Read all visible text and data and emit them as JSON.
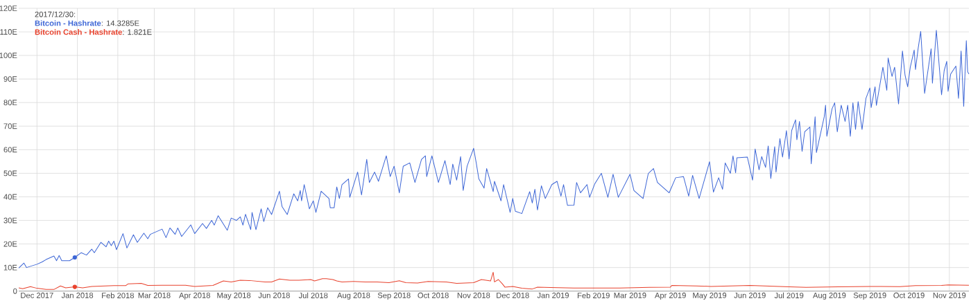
{
  "chart_data": {
    "type": "line",
    "xlim": [
      "2017-11-17",
      "2019-11-16"
    ],
    "ylim": [
      0,
      120
    ],
    "xticks": [
      {
        "value": "2017-12-01",
        "label": "Dec 2017"
      },
      {
        "value": "2018-01-01",
        "label": "Jan 2018"
      },
      {
        "value": "2018-02-01",
        "label": "Feb 2018"
      },
      {
        "value": "2018-03-01",
        "label": "Mar 2018"
      },
      {
        "value": "2018-04-01",
        "label": "Apr 2018"
      },
      {
        "value": "2018-05-01",
        "label": "May 2018"
      },
      {
        "value": "2018-06-01",
        "label": "Jun 2018"
      },
      {
        "value": "2018-07-01",
        "label": "Jul 2018"
      },
      {
        "value": "2018-08-01",
        "label": "Aug 2018"
      },
      {
        "value": "2018-09-01",
        "label": "Sep 2018"
      },
      {
        "value": "2018-10-01",
        "label": "Oct 2018"
      },
      {
        "value": "2018-11-01",
        "label": "Nov 2018"
      },
      {
        "value": "2018-12-01",
        "label": "Dec 2018"
      },
      {
        "value": "2019-01-01",
        "label": "Jan 2019"
      },
      {
        "value": "2019-02-01",
        "label": "Feb 2019"
      },
      {
        "value": "2019-03-01",
        "label": "Mar 2019"
      },
      {
        "value": "2019-04-01",
        "label": "Apr 2019"
      },
      {
        "value": "2019-05-01",
        "label": "May 2019"
      },
      {
        "value": "2019-06-01",
        "label": "Jun 2019"
      },
      {
        "value": "2019-07-01",
        "label": "Jul 2019"
      },
      {
        "value": "2019-08-01",
        "label": "Aug 2019"
      },
      {
        "value": "2019-09-01",
        "label": "Sep 2019"
      },
      {
        "value": "2019-10-01",
        "label": "Oct 2019"
      },
      {
        "value": "2019-11-01",
        "label": "Nov 2019"
      }
    ],
    "yticks": [
      0,
      {
        "value": 10,
        "label": "10E"
      },
      {
        "value": 20,
        "label": "20E"
      },
      {
        "value": 30,
        "label": "30E"
      },
      {
        "value": 40,
        "label": "40E"
      },
      {
        "value": 50,
        "label": "50E"
      },
      {
        "value": 60,
        "label": "60E"
      },
      {
        "value": 70,
        "label": "70E"
      },
      {
        "value": 80,
        "label": "80E"
      },
      {
        "value": 90,
        "label": "90E"
      },
      {
        "value": 100,
        "label": "100E"
      },
      {
        "value": 110,
        "label": "110E"
      },
      {
        "value": 120,
        "label": "120E"
      }
    ],
    "grid": true,
    "legend": "top left",
    "marker": "none",
    "line_style": "solid",
    "annotations": [
      "2017/12/30:",
      ": 14.3285E",
      ": 1.821E"
    ],
    "series": [
      {
        "name": "Bitcoin - Hashrate",
        "color": "#3d66d6",
        "x": [
          "2017-11-17",
          "2017-11-21",
          "2017-11-23",
          "2017-12-01",
          "2017-12-05",
          "2017-12-08",
          "2017-12-14",
          "2017-12-16",
          "2017-12-18",
          "2017-12-20",
          "2017-12-26",
          "2017-12-30",
          "2018-01-04",
          "2018-01-08",
          "2018-01-12",
          "2018-01-14",
          "2018-01-19",
          "2018-01-23",
          "2018-01-25",
          "2018-01-27",
          "2018-01-29",
          "2018-01-31",
          "2018-02-05",
          "2018-02-08",
          "2018-02-13",
          "2018-02-16",
          "2018-02-21",
          "2018-02-24",
          "2018-02-26",
          "2018-03-07",
          "2018-03-10",
          "2018-03-13",
          "2018-03-17",
          "2018-03-19",
          "2018-03-22",
          "2018-03-29",
          "2018-04-01",
          "2018-04-07",
          "2018-04-10",
          "2018-04-14",
          "2018-04-16",
          "2018-04-19",
          "2018-04-26",
          "2018-04-29",
          "2018-05-03",
          "2018-05-06",
          "2018-05-08",
          "2018-05-10",
          "2018-05-14",
          "2018-05-15",
          "2018-05-18",
          "2018-05-22",
          "2018-05-24",
          "2018-05-27",
          "2018-05-30",
          "2018-06-05",
          "2018-06-07",
          "2018-06-11",
          "2018-06-16",
          "2018-06-19",
          "2018-06-21",
          "2018-06-22",
          "2018-06-24",
          "2018-06-28",
          "2018-07-01",
          "2018-07-03",
          "2018-07-07",
          "2018-07-13",
          "2018-07-14",
          "2018-07-17",
          "2018-07-19",
          "2018-07-21",
          "2018-07-23",
          "2018-07-28",
          "2018-07-29",
          "2018-08-04",
          "2018-08-07",
          "2018-08-11",
          "2018-08-13",
          "2018-08-17",
          "2018-08-20",
          "2018-08-26",
          "2018-08-29",
          "2018-09-01",
          "2018-09-05",
          "2018-09-08",
          "2018-09-13",
          "2018-09-17",
          "2018-09-22",
          "2018-09-25",
          "2018-09-26",
          "2018-09-30",
          "2018-10-05",
          "2018-10-10",
          "2018-10-14",
          "2018-10-16",
          "2018-10-19",
          "2018-10-22",
          "2018-10-24",
          "2018-10-27",
          "2018-11-01",
          "2018-11-03",
          "2018-11-05",
          "2018-11-09",
          "2018-11-11",
          "2018-11-16",
          "2018-11-17",
          "2018-11-22",
          "2018-11-24",
          "2018-11-29",
          "2018-12-01",
          "2018-12-03",
          "2018-12-08",
          "2018-12-14",
          "2018-12-16",
          "2018-12-18",
          "2018-12-20",
          "2018-12-23",
          "2018-12-26",
          "2018-12-31",
          "2019-01-04",
          "2019-01-07",
          "2019-01-09",
          "2019-01-12",
          "2019-01-17",
          "2019-01-19",
          "2019-01-22",
          "2019-01-27",
          "2019-01-29",
          "2019-02-02",
          "2019-02-07",
          "2019-02-12",
          "2019-02-16",
          "2019-02-20",
          "2019-03-01",
          "2019-03-04",
          "2019-03-11",
          "2019-03-15",
          "2019-03-19",
          "2019-03-22",
          "2019-03-31",
          "2019-04-05",
          "2019-04-11",
          "2019-04-15",
          "2019-04-18",
          "2019-04-23",
          "2019-05-01",
          "2019-05-04",
          "2019-05-08",
          "2019-05-11",
          "2019-05-13",
          "2019-05-17",
          "2019-05-19",
          "2019-05-21",
          "2019-05-22",
          "2019-05-30",
          "2019-06-03",
          "2019-06-05",
          "2019-06-08",
          "2019-06-10",
          "2019-06-13",
          "2019-06-15",
          "2019-06-17",
          "2019-06-20",
          "2019-06-21",
          "2019-06-24",
          "2019-06-26",
          "2019-06-29",
          "2019-07-01",
          "2019-07-03",
          "2019-07-06",
          "2019-07-07",
          "2019-07-09",
          "2019-07-11",
          "2019-07-13",
          "2019-07-17",
          "2019-07-18",
          "2019-07-21",
          "2019-07-22",
          "2019-07-28",
          "2019-07-29",
          "2019-07-30",
          "2019-08-03",
          "2019-08-05",
          "2019-08-07",
          "2019-08-10",
          "2019-08-13",
          "2019-08-15",
          "2019-08-17",
          "2019-08-19",
          "2019-08-21",
          "2019-08-23",
          "2019-08-26",
          "2019-08-29",
          "2019-09-01",
          "2019-09-02",
          "2019-09-05",
          "2019-09-06",
          "2019-09-11",
          "2019-09-14",
          "2019-09-15",
          "2019-09-18",
          "2019-09-20",
          "2019-09-23",
          "2019-09-26",
          "2019-09-28",
          "2019-09-30",
          "2019-10-02",
          "2019-10-05",
          "2019-10-06",
          "2019-10-08",
          "2019-10-10",
          "2019-10-13",
          "2019-10-18",
          "2019-10-19",
          "2019-10-22",
          "2019-10-26",
          "2019-10-28",
          "2019-10-30",
          "2019-10-31",
          "2019-11-02",
          "2019-11-06",
          "2019-11-08",
          "2019-11-10",
          "2019-11-12",
          "2019-11-14",
          "2019-11-15",
          "2019-11-16"
        ],
        "values": [
          9.8,
          11.9,
          10,
          11.4,
          12.4,
          13.4,
          14.9,
          12.9,
          15.1,
          12.9,
          12.9,
          14.3,
          16.3,
          15.3,
          17.8,
          16.3,
          20.7,
          18.8,
          21.2,
          19.3,
          21.2,
          17.6,
          24.4,
          18.3,
          23.9,
          20.7,
          24.6,
          22.2,
          24.1,
          26.3,
          22.7,
          26.8,
          24.1,
          26.8,
          23.2,
          28.1,
          24.4,
          28.7,
          26.6,
          30,
          28,
          32,
          25.8,
          31,
          30,
          31.5,
          28,
          32.6,
          26.1,
          33.4,
          26.1,
          34.9,
          29.5,
          35.4,
          32.5,
          42.4,
          35.9,
          32.5,
          41.3,
          38.3,
          42.7,
          38.3,
          45.2,
          34.9,
          38.3,
          33.4,
          42.4,
          39.3,
          35.4,
          35.4,
          44.2,
          39.3,
          45.2,
          47.6,
          39.8,
          50.5,
          40.8,
          55.9,
          46.1,
          50.5,
          46.6,
          57.4,
          48.6,
          53,
          41.7,
          53,
          54.4,
          46.1,
          55.9,
          57.4,
          48.6,
          57.4,
          46.1,
          55.4,
          45.2,
          53.9,
          47.1,
          57.1,
          42.7,
          53,
          60.6,
          54.4,
          47.6,
          43.7,
          52,
          42.2,
          46.6,
          38.3,
          45.2,
          33.4,
          39.3,
          33.9,
          32.9,
          42.2,
          37.4,
          43.2,
          34.4,
          44.7,
          39.3,
          45.2,
          46.6,
          40.3,
          45.2,
          36.4,
          36.5,
          46.1,
          41.7,
          45.2,
          39.8,
          45.6,
          50,
          39.8,
          49.6,
          39.8,
          49.6,
          42.7,
          39.3,
          49.9,
          52,
          46.1,
          41.7,
          48.1,
          48.6,
          40.3,
          49.1,
          39.3,
          54.9,
          42,
          48.1,
          43.2,
          54.4,
          50,
          57.4,
          50.2,
          56.6,
          56.9,
          47.1,
          60.3,
          51.5,
          57.1,
          52.5,
          61.6,
          47.8,
          61.3,
          50.5,
          64.7,
          56.9,
          68.1,
          56.1,
          68.1,
          72.7,
          64.2,
          72,
          59.3,
          67.6,
          69.6,
          54,
          74,
          58.8,
          74,
          78.9,
          65.7,
          77.4,
          79.9,
          67.6,
          78.9,
          72,
          78.9,
          65.7,
          79.9,
          68.6,
          80.4,
          68.6,
          81.8,
          86.2,
          77.9,
          86.7,
          78.8,
          95,
          85.2,
          98.9,
          91.1,
          95,
          79.4,
          101.9,
          91.6,
          86.7,
          95,
          102.3,
          94,
          102.8,
          110.2,
          83.9,
          102.8,
          88.2,
          110.7,
          83.3,
          93.5,
          97.5,
          84.8,
          92.1,
          95.5,
          81.8,
          101.9,
          78.4,
          106.3,
          93.1,
          92.1
        ]
      },
      {
        "name": "Bitcoin Cash - Hashrate",
        "color": "#e8412c",
        "x": [
          "2017-11-17",
          "2017-11-20",
          "2017-11-26",
          "2017-12-01",
          "2017-12-08",
          "2017-12-14",
          "2017-12-19",
          "2017-12-23",
          "2017-12-30",
          "2018-01-05",
          "2018-01-12",
          "2018-01-29",
          "2018-02-07",
          "2018-02-09",
          "2018-02-19",
          "2018-02-24",
          "2018-03-07",
          "2018-03-25",
          "2018-04-01",
          "2018-04-15",
          "2018-04-23",
          "2018-04-29",
          "2018-05-06",
          "2018-05-13",
          "2018-05-25",
          "2018-05-30",
          "2018-06-05",
          "2018-06-13",
          "2018-06-20",
          "2018-06-29",
          "2018-07-02",
          "2018-07-08",
          "2018-07-11",
          "2018-07-16",
          "2018-07-19",
          "2018-07-23",
          "2018-08-01",
          "2018-08-10",
          "2018-08-19",
          "2018-08-28",
          "2018-09-05",
          "2018-09-10",
          "2018-09-19",
          "2018-09-27",
          "2018-10-11",
          "2018-10-19",
          "2018-11-01",
          "2018-11-07",
          "2018-11-14",
          "2018-11-16",
          "2018-11-17",
          "2018-11-20",
          "2018-11-23",
          "2018-11-25",
          "2018-12-01",
          "2018-12-08",
          "2018-12-16",
          "2018-12-20",
          "2018-12-30",
          "2019-01-17",
          "2019-02-21",
          "2019-03-16",
          "2019-04-01",
          "2019-04-02",
          "2019-04-21",
          "2019-05-02",
          "2019-06-01",
          "2019-07-01",
          "2019-07-14",
          "2019-08-08",
          "2019-09-01",
          "2019-09-24",
          "2019-10-06",
          "2019-10-26",
          "2019-10-31",
          "2019-11-16"
        ],
        "values": [
          1.4,
          1,
          1.9,
          1.2,
          0.7,
          0.7,
          2.2,
          1.4,
          1.8,
          1.4,
          2,
          2.3,
          2.3,
          3.1,
          3.3,
          2.4,
          2.5,
          2.5,
          2,
          2.4,
          4.3,
          3.9,
          4.6,
          4.5,
          3.9,
          3.9,
          5.1,
          4.6,
          4.6,
          4.9,
          4.3,
          5.3,
          5.3,
          4.9,
          4.3,
          3.9,
          4.1,
          3.9,
          3.9,
          3.6,
          4.4,
          3.6,
          3.4,
          4.1,
          3.9,
          3.3,
          3.6,
          4.9,
          4.3,
          8,
          3.9,
          4.9,
          3.1,
          1.7,
          2,
          1.2,
          0.9,
          1.7,
          1.5,
          1.3,
          1.3,
          1.6,
          1.7,
          2.4,
          2.2,
          2,
          2.4,
          1.8,
          1.6,
          1.8,
          2,
          1.9,
          2.3,
          2.4,
          2.6,
          2.5
        ]
      },
      {
        "type": "scatter",
        "color": "#3d66d6",
        "x": [
          "2017-12-30"
        ],
        "values": [
          14.3
        ]
      },
      {
        "type": "scatter",
        "color": "#e8412c",
        "x": [
          "2017-12-30"
        ],
        "values": [
          1.8
        ]
      }
    ]
  }
}
